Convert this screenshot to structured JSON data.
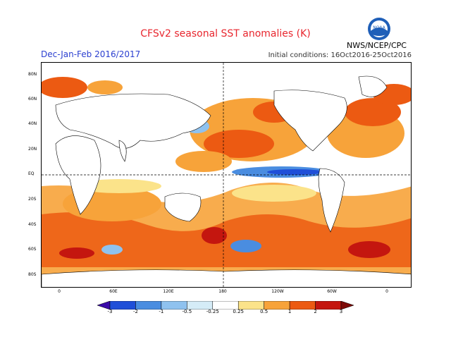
{
  "header": {
    "title": "CFSv2 seasonal SST anomalies (K)",
    "period": "Dec-Jan-Feb 2016/2017",
    "initial_conditions": "Initial conditions: 16Oct2016-25Oct2016",
    "agency": "NWS/NCEP/CPC",
    "logo_text": "NOAA"
  },
  "map": {
    "lat_labels": [
      "80N",
      "60N",
      "40N",
      "20N",
      "EQ",
      "20S",
      "40S",
      "60S",
      "80S"
    ],
    "lon_labels": [
      "0",
      "60E",
      "120E",
      "180",
      "120W",
      "60W",
      "0"
    ]
  },
  "colorbar": {
    "labels": [
      "-3",
      "-2",
      "-1",
      "-0.5",
      "-0.25",
      "0.25",
      "0.5",
      "1",
      "2",
      "3"
    ],
    "colors": [
      "#3a0aa8",
      "#1f4fd8",
      "#4a8de0",
      "#8fc2ef",
      "#d5ecf7",
      "#ffffff",
      "#fbe38a",
      "#f7a33a",
      "#ec5a12",
      "#c4160f",
      "#7d0a07"
    ]
  }
}
